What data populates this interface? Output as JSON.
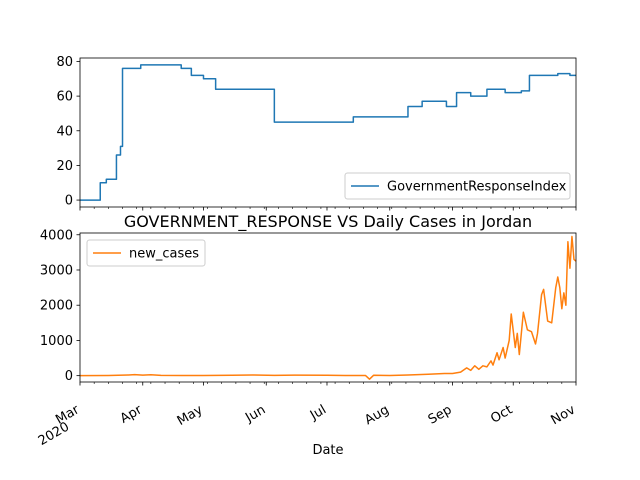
{
  "chart_data": [
    {
      "type": "line",
      "title": "",
      "xlabel": "",
      "ylabel": "",
      "ylim": [
        -4,
        82
      ],
      "yticks": [
        0,
        20,
        40,
        60,
        80
      ],
      "grid": false,
      "legend_position": "lower-right",
      "series": [
        {
          "name": "GovernmentResponseIndex",
          "color": "#1f77b4",
          "step": true,
          "points": [
            [
              "2020-03-01",
              0
            ],
            [
              "2020-03-11",
              10
            ],
            [
              "2020-03-14",
              12
            ],
            [
              "2020-03-19",
              26
            ],
            [
              "2020-03-21",
              31
            ],
            [
              "2020-03-22",
              76
            ],
            [
              "2020-03-31",
              78
            ],
            [
              "2020-04-20",
              76
            ],
            [
              "2020-04-25",
              72
            ],
            [
              "2020-05-01",
              70
            ],
            [
              "2020-05-07",
              64
            ],
            [
              "2020-06-05",
              45
            ],
            [
              "2020-07-14",
              48
            ],
            [
              "2020-08-10",
              54
            ],
            [
              "2020-08-17",
              57
            ],
            [
              "2020-08-29",
              54
            ],
            [
              "2020-09-03",
              62
            ],
            [
              "2020-09-10",
              60
            ],
            [
              "2020-09-18",
              64
            ],
            [
              "2020-09-27",
              62
            ],
            [
              "2020-10-05",
              63
            ],
            [
              "2020-10-09",
              72
            ],
            [
              "2020-10-23",
              73
            ],
            [
              "2020-10-29",
              72
            ],
            [
              "2020-11-01",
              72
            ]
          ]
        }
      ]
    },
    {
      "type": "line",
      "title": "GOVERNMENT_RESPONSE VS Daily Cases in Jordan",
      "xlabel": "Date",
      "ylabel": "",
      "ylim": [
        -180,
        4050
      ],
      "yticks": [
        0,
        1000,
        2000,
        3000,
        4000
      ],
      "xlim": [
        "2020-03-01",
        "2020-11-01"
      ],
      "xticks": [
        {
          "date": "2020-03-01",
          "label": "Mar",
          "sublabel": "2020"
        },
        {
          "date": "2020-04-01",
          "label": "Apr"
        },
        {
          "date": "2020-05-01",
          "label": "May"
        },
        {
          "date": "2020-06-01",
          "label": "Jun"
        },
        {
          "date": "2020-07-01",
          "label": "Jul"
        },
        {
          "date": "2020-08-01",
          "label": "Aug"
        },
        {
          "date": "2020-09-01",
          "label": "Sep"
        },
        {
          "date": "2020-10-01",
          "label": "Oct"
        },
        {
          "date": "2020-11-01",
          "label": "Nov"
        }
      ],
      "grid": false,
      "legend_position": "upper-left",
      "series": [
        {
          "name": "new_cases",
          "color": "#ff7f0e",
          "step": false,
          "points": [
            [
              "2020-03-01",
              0
            ],
            [
              "2020-03-15",
              5
            ],
            [
              "2020-03-25",
              20
            ],
            [
              "2020-03-28",
              30
            ],
            [
              "2020-04-01",
              15
            ],
            [
              "2020-04-05",
              25
            ],
            [
              "2020-04-10",
              8
            ],
            [
              "2020-04-20",
              5
            ],
            [
              "2020-05-01",
              3
            ],
            [
              "2020-05-15",
              10
            ],
            [
              "2020-05-25",
              20
            ],
            [
              "2020-06-05",
              8
            ],
            [
              "2020-06-15",
              15
            ],
            [
              "2020-07-01",
              10
            ],
            [
              "2020-07-10",
              5
            ],
            [
              "2020-07-20",
              5
            ],
            [
              "2020-07-22",
              -100
            ],
            [
              "2020-07-24",
              10
            ],
            [
              "2020-08-01",
              5
            ],
            [
              "2020-08-10",
              20
            ],
            [
              "2020-08-20",
              40
            ],
            [
              "2020-08-28",
              60
            ],
            [
              "2020-09-01",
              60
            ],
            [
              "2020-09-05",
              100
            ],
            [
              "2020-09-08",
              220
            ],
            [
              "2020-09-10",
              150
            ],
            [
              "2020-09-12",
              280
            ],
            [
              "2020-09-14",
              180
            ],
            [
              "2020-09-16",
              280
            ],
            [
              "2020-09-18",
              250
            ],
            [
              "2020-09-20",
              420
            ],
            [
              "2020-09-21",
              300
            ],
            [
              "2020-09-23",
              650
            ],
            [
              "2020-09-24",
              450
            ],
            [
              "2020-09-26",
              800
            ],
            [
              "2020-09-27",
              500
            ],
            [
              "2020-09-29",
              1000
            ],
            [
              "2020-09-30",
              1750
            ],
            [
              "2020-10-02",
              800
            ],
            [
              "2020-10-03",
              1200
            ],
            [
              "2020-10-04",
              600
            ],
            [
              "2020-10-06",
              1800
            ],
            [
              "2020-10-08",
              1300
            ],
            [
              "2020-10-10",
              1250
            ],
            [
              "2020-10-12",
              900
            ],
            [
              "2020-10-13",
              1200
            ],
            [
              "2020-10-15",
              2300
            ],
            [
              "2020-10-16",
              2450
            ],
            [
              "2020-10-18",
              1550
            ],
            [
              "2020-10-20",
              1500
            ],
            [
              "2020-10-22",
              2500
            ],
            [
              "2020-10-23",
              2800
            ],
            [
              "2020-10-24",
              2500
            ],
            [
              "2020-10-25",
              1900
            ],
            [
              "2020-10-26",
              2350
            ],
            [
              "2020-10-27",
              2000
            ],
            [
              "2020-10-28",
              3800
            ],
            [
              "2020-10-29",
              3050
            ],
            [
              "2020-10-30",
              3950
            ],
            [
              "2020-10-31",
              3300
            ],
            [
              "2020-11-01",
              3250
            ]
          ]
        }
      ]
    }
  ]
}
